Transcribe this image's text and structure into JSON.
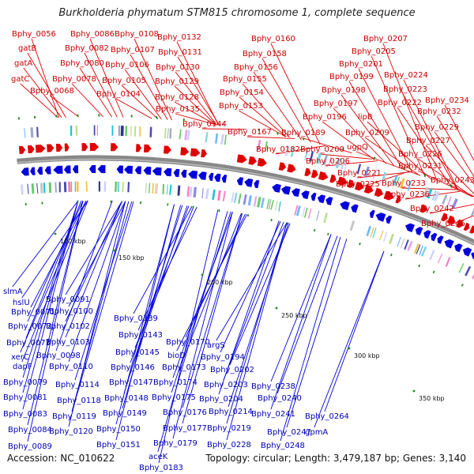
{
  "title": "Burkholderia phymatum STM815 chromosome 1, complete sequence",
  "footer": {
    "accession": "Accession: NC_010622",
    "summary": "Topology: circular; Length: 3,479,187 bp; Genes: 3,140"
  },
  "colors": {
    "forward": "#e00000",
    "reverse": "#0000dd",
    "backbone": "#888888",
    "forward_label": "#c80000",
    "reverse_label": "#0000b4",
    "tick": "#1a8a1a"
  },
  "ticks": [
    {
      "label": "100 kbp"
    },
    {
      "label": "150 kbp"
    },
    {
      "label": "200 kbp"
    },
    {
      "label": "250 kbp"
    },
    {
      "label": "300 kbp"
    },
    {
      "label": "350 kbp"
    }
  ],
  "top_labels": [
    "Bphy_0056",
    "gatB",
    "gatA",
    "gatC",
    "Bphy_0068",
    "Bphy_0086",
    "Bphy_0082",
    "Bphy_0080",
    "Bphy_0078",
    "Bphy_0108",
    "Bphy_0107",
    "Bphy_0106",
    "Bphy_0105",
    "Bphy_0104",
    "Bphy_0132",
    "Bphy_0131",
    "Bphy_0130",
    "Bphy_0129",
    "Bphy_0128",
    "Bphy_0135",
    "Bphy_0144",
    "Bphy_0160",
    "Bphy_0158",
    "Bphy_0156",
    "Bphy_0155",
    "Bphy_0154",
    "Bphy_0153",
    "Bphy_0167",
    "Bphy_0182",
    "Bphy_0189",
    "Bphy_0207",
    "Bphy_0205",
    "Bphy_0201",
    "Bphy_0199",
    "Bphy_0198",
    "Bphy_0197",
    "Bphy_0196",
    "Bphy_0200",
    "Bphy_0206",
    "Bphy_0224",
    "Bphy_0223",
    "Bphy_0222",
    "lipB",
    "Bphy_0209",
    "ugpQ",
    "Bphy_0221",
    "Bphy_0225",
    "Bphy_0234",
    "Bphy_0232",
    "Bphy_0229",
    "Bphy_0227",
    "Bphy_0226",
    "Bphy_0231",
    "Bphy_0233",
    "Bphy_0236",
    "Bphy_0243",
    "Bphy_0242",
    "Bphy_0246"
  ],
  "bottom_labels": [
    "slmA",
    "hslU",
    "Bphy_0071",
    "Bphy_0072",
    "Bphy_0073",
    "xerC",
    "dapF",
    "Bphy_0079",
    "Bphy_0081",
    "Bphy_0083",
    "Bphy_0084",
    "Bphy_0089",
    "Bphy_0091",
    "Bphy_0100",
    "Bphy_0102",
    "Bphy_0103",
    "Bphy_0098",
    "Bphy_0110",
    "Bphy_0114",
    "Bphy_0118",
    "Bphy_0119",
    "Bphy_0120",
    "Bphy_0139",
    "Bphy_0143",
    "Bphy_0145",
    "Bphy_0146",
    "Bphy_0147",
    "Bphy_0148",
    "Bphy_0149",
    "Bphy_0150",
    "Bphy_0151",
    "Bphy_0170",
    "bioD",
    "Bphy_0173",
    "Bphy_0174",
    "Bphy_0175",
    "Bphy_0176",
    "Bphy_0177",
    "Bphy_0179",
    "aceK",
    "Bphy_0183",
    "argS",
    "Bphy_0194",
    "Bphy_0202",
    "Bphy_0203",
    "Bphy_0204",
    "Bphy_0214",
    "Bphy_0219",
    "Bphy_0228",
    "Bphy_0238",
    "Bphy_0240",
    "Bphy_0241",
    "Bphy_0247",
    "Bphy_0248",
    "Bphy_0264",
    "gpmA"
  ]
}
